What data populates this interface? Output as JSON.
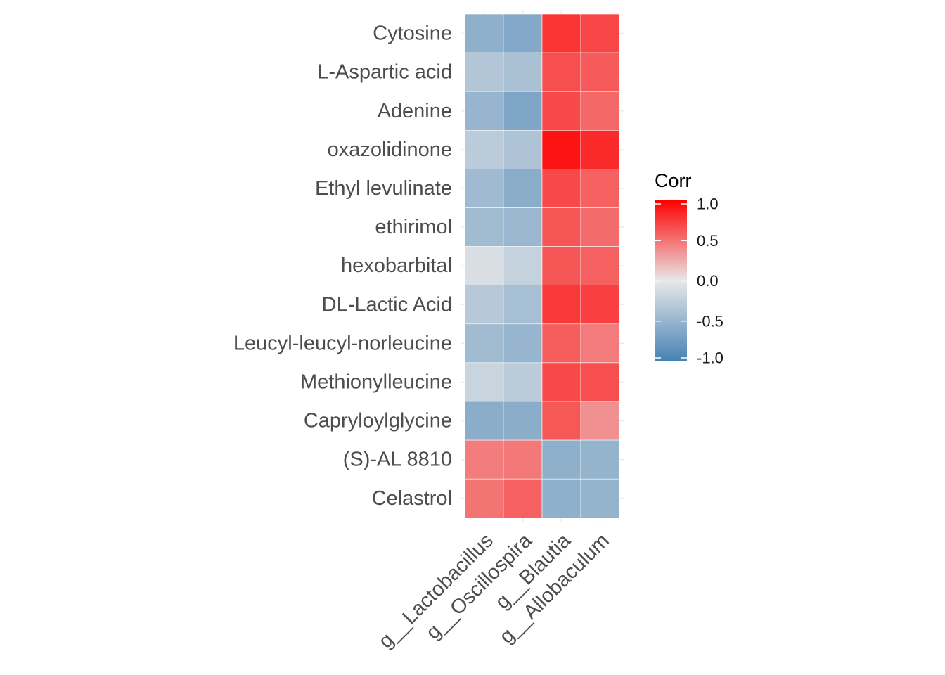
{
  "chart_data": {
    "type": "heatmap",
    "title": "",
    "xlabel": "",
    "ylabel": "",
    "x": [
      "g__Lactobacillus",
      "g__Oscillospira",
      "g__Blautia",
      "g__Allobaculum"
    ],
    "y": [
      "Cytosine",
      "L-Aspartic acid",
      "Adenine",
      "oxazolidinone",
      "Ethyl levulinate",
      "ethirimol",
      "hexobarbital",
      "DL-Lactic Acid",
      "Leucyl-leucyl-norleucine",
      "Methionylleucine",
      "Capryloylglycine",
      "(S)-AL 8810",
      "Celastrol"
    ],
    "values": [
      [
        -0.55,
        -0.62,
        0.78,
        0.7
      ],
      [
        -0.33,
        -0.38,
        0.66,
        0.61
      ],
      [
        -0.5,
        -0.65,
        0.69,
        0.55
      ],
      [
        -0.28,
        -0.36,
        0.92,
        0.82
      ],
      [
        -0.45,
        -0.58,
        0.69,
        0.58
      ],
      [
        -0.44,
        -0.48,
        0.63,
        0.54
      ],
      [
        -0.1,
        -0.22,
        0.63,
        0.58
      ],
      [
        -0.3,
        -0.4,
        0.76,
        0.73
      ],
      [
        -0.44,
        -0.5,
        0.6,
        0.47
      ],
      [
        -0.2,
        -0.28,
        0.69,
        0.66
      ],
      [
        -0.58,
        -0.58,
        0.62,
        0.38
      ],
      [
        0.46,
        0.48,
        -0.55,
        -0.52
      ],
      [
        0.5,
        0.58,
        -0.55,
        -0.52
      ]
    ],
    "scale": {
      "low_color": "#4682B4",
      "mid_color": "#E8E8E8",
      "high_color": "#FF0000",
      "limits": [
        -1.0,
        1.0
      ]
    },
    "legend": {
      "title": "Corr",
      "position": "right",
      "ticks": [
        1.0,
        0.5,
        0.0,
        -0.5,
        -1.0
      ],
      "tick_labels": [
        "1.0",
        "0.5",
        "0.0",
        "-0.5",
        "-1.0"
      ]
    },
    "grid": true
  }
}
